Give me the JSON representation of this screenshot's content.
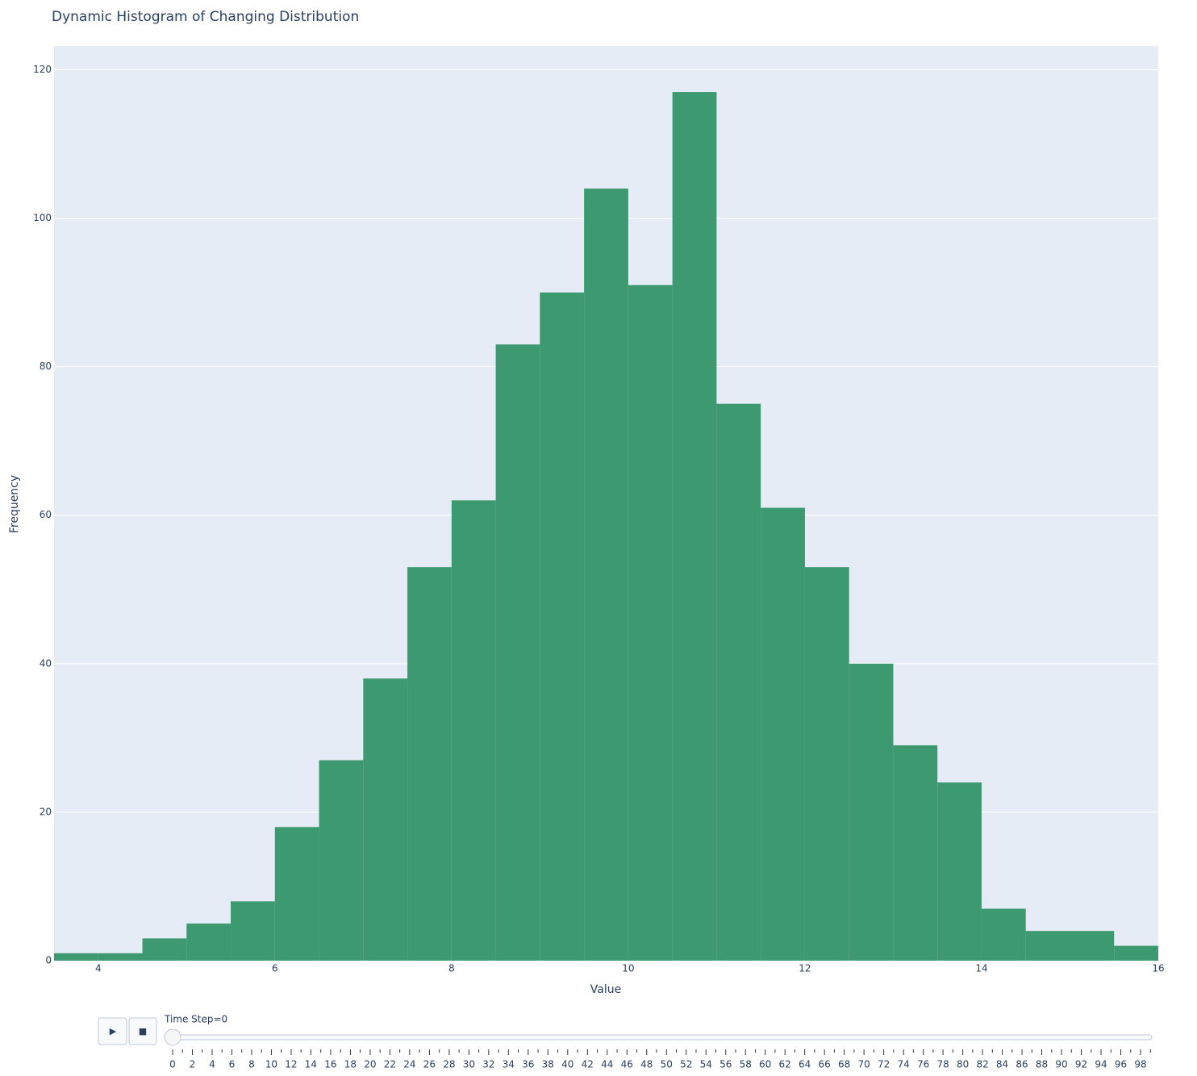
{
  "chart_data": {
    "type": "histogram",
    "title": "Dynamic Histogram of Changing Distribution",
    "x_label": "Value",
    "y_label": "Frequency",
    "bins": [
      3.5,
      4,
      4.5,
      5,
      5.5,
      6,
      6.5,
      7,
      7.5,
      8,
      8.5,
      9,
      9.5,
      10,
      10.5,
      11,
      11.5,
      12,
      12.5,
      13,
      13.5,
      14,
      14.5,
      15,
      15.5,
      16
    ],
    "values": [
      1,
      1,
      3,
      5,
      8,
      18,
      27,
      38,
      53,
      62,
      83,
      90,
      104,
      91,
      117,
      75,
      61,
      53,
      40,
      29,
      24,
      7,
      4,
      4,
      2
    ],
    "color": "#3d9970",
    "xlim": [
      3.5,
      16
    ],
    "xticks": [
      4,
      6,
      8,
      10,
      12,
      14,
      16
    ],
    "ylim": [
      0,
      123.2
    ],
    "yticks": [
      0,
      20,
      40,
      60,
      80,
      100,
      120
    ],
    "grid": true
  },
  "slider": {
    "current_label": "Time Step=0",
    "current": 0,
    "buttons": [
      "▶",
      "■"
    ],
    "steps": [
      0,
      1,
      2,
      3,
      4,
      5,
      6,
      7,
      8,
      9,
      10,
      11,
      12,
      13,
      14,
      15,
      16,
      17,
      18,
      19,
      20,
      21,
      22,
      23,
      24,
      25,
      26,
      27,
      28,
      29,
      30,
      31,
      32,
      33,
      34,
      35,
      36,
      37,
      38,
      39,
      40,
      41,
      42,
      43,
      44,
      45,
      46,
      47,
      48,
      49,
      50,
      51,
      52,
      53,
      54,
      55,
      56,
      57,
      58,
      59,
      60,
      61,
      62,
      63,
      64,
      65,
      66,
      67,
      68,
      69,
      70,
      71,
      72,
      73,
      74,
      75,
      76,
      77,
      78,
      79,
      80,
      81,
      82,
      83,
      84,
      85,
      86,
      87,
      88,
      89,
      90,
      91,
      92,
      93,
      94,
      95,
      96,
      97,
      98,
      99
    ]
  }
}
